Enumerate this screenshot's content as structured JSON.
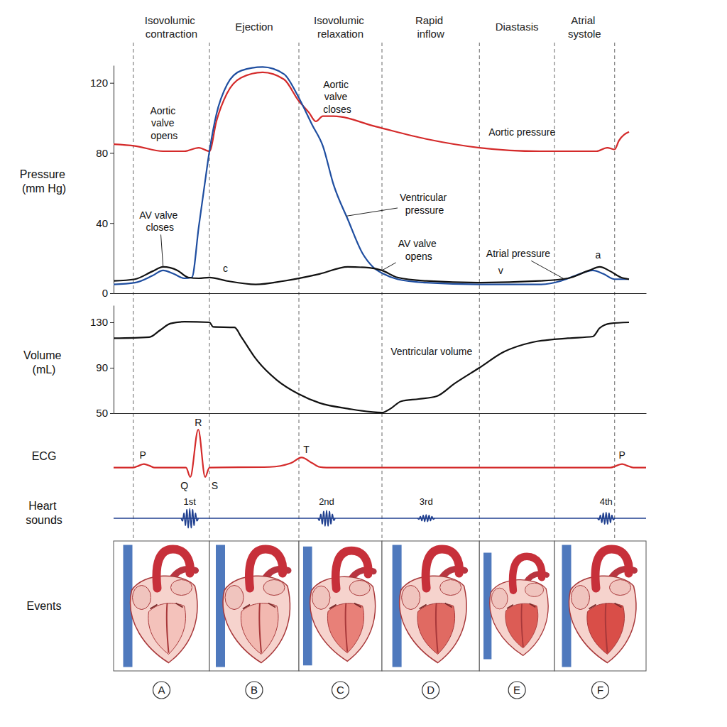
{
  "xlim": [
    0,
    100
  ],
  "boundaries": [
    3.7,
    18,
    34.8,
    50.4,
    68.7,
    82.8,
    94.1
  ],
  "phases": [
    "Isovolumic contraction",
    "Ejection",
    "Isovolumic relaxation",
    "Rapid inflow",
    "Diastasis",
    "Atrial systole"
  ],
  "chart_data": [
    {
      "type": "line",
      "y_label": "Pressure (mm Hg)",
      "ylim": [
        0,
        130
      ],
      "yticks": [
        0,
        40,
        80,
        120
      ],
      "tick_labels": "y",
      "series": [
        {
          "color": "#d42a2a",
          "x": [
            0,
            4,
            9.3,
            13.3,
            16,
            18,
            19.3,
            21.3,
            24,
            28,
            32,
            34.7,
            36.7,
            38,
            39.3,
            41.3,
            49.3,
            58.7,
            68.7,
            80,
            90.7,
            92.7,
            94.1,
            94.9,
            96.8
          ],
          "values": [
            85,
            84,
            81,
            81,
            83,
            81,
            98,
            114,
            123,
            126,
            122,
            110,
            103,
            98,
            101,
            101,
            95,
            88,
            83,
            81,
            81,
            83,
            82,
            87,
            92
          ]
        },
        {
          "color": "#1f4ea0",
          "x": [
            0,
            4,
            7.3,
            9.3,
            11.3,
            13.3,
            14.7,
            16,
            17.1,
            18,
            19.3,
            21.3,
            24,
            28,
            32,
            34.7,
            37.3,
            39.3,
            41.3,
            44,
            46.7,
            48.7,
            50.7,
            53.3,
            58.7,
            68.7,
            80,
            84,
            86.7,
            90,
            92,
            94.1,
            96.8
          ],
          "values": [
            5,
            6,
            10,
            13,
            11,
            8.5,
            9,
            38,
            62,
            81,
            102,
            119,
            127,
            129,
            125,
            112,
            96,
            84,
            62,
            42,
            23,
            15,
            11,
            8,
            6,
            5,
            5,
            7,
            10,
            13,
            11,
            8,
            8
          ]
        },
        {
          "color": "#111111",
          "x": [
            0,
            4,
            7.3,
            9.3,
            12,
            14,
            16,
            18,
            21.3,
            26.7,
            32,
            38.7,
            44,
            48,
            50.4,
            53.3,
            58.7,
            68.7,
            80,
            85.3,
            89.3,
            91.3,
            93.3,
            95.3,
            96.8
          ],
          "values": [
            7,
            8,
            12.5,
            15,
            13,
            9,
            8.5,
            9,
            7,
            5,
            7,
            11,
            15,
            14.5,
            13,
            9,
            7,
            6,
            7,
            8.5,
            13,
            15,
            12.5,
            9,
            8
          ]
        }
      ],
      "annotations": [
        {
          "text": "Aortic valve opens",
          "x": 9.5,
          "y": 97
        },
        {
          "text": "AV valve closes",
          "x": 8.7,
          "y": 41,
          "point": [
            9.3,
            15
          ]
        },
        {
          "text": "c",
          "x": 21,
          "y": 14
        },
        {
          "text": "Aortic valve closes",
          "x": 42,
          "y": 112
        },
        {
          "text": "Ventricular pressure",
          "x": 58.4,
          "y": 51,
          "point": [
            43.7,
            44
          ]
        },
        {
          "text": "AV valve opens",
          "x": 57.3,
          "y": 24.7,
          "point": [
            50.4,
            13
          ]
        },
        {
          "text": "v",
          "x": 72.7,
          "y": 13
        },
        {
          "text": "Atrial pressure",
          "x": 76,
          "y": 22.5,
          "point": [
            84.7,
            8
          ]
        },
        {
          "text": "a",
          "x": 91,
          "y": 22
        },
        {
          "text": "Aortic pressure",
          "x": 76.7,
          "y": 92
        }
      ]
    },
    {
      "type": "line",
      "y_label": "Volume (mL)",
      "ylim": [
        50,
        145
      ],
      "yticks": [
        50,
        90,
        130
      ],
      "tick_labels": "y",
      "series": [
        {
          "color": "#111111",
          "x": [
            0,
            6.7,
            8.7,
            10.7,
            13.3,
            18,
            18.7,
            22.7,
            24,
            26.7,
            30.7,
            34.7,
            38.7,
            44,
            50.4,
            52,
            54,
            57.3,
            60.7,
            64,
            68.7,
            73.3,
            78.7,
            85.3,
            90,
            91.3,
            93.3,
            96.8
          ],
          "values": [
            116,
            117,
            123,
            129,
            130.5,
            130,
            126,
            125.5,
            117,
            98,
            79,
            67,
            59,
            54,
            50.5,
            54,
            60.5,
            62.5,
            65,
            76,
            90,
            104,
            112.5,
            116,
            117.5,
            125,
            129,
            130
          ]
        }
      ],
      "annotations": [
        {
          "text": "Ventricular volume",
          "x": 59.7,
          "y": 104.4
        }
      ]
    },
    {
      "type": "line",
      "y_label": "ECG",
      "tick_labels": false,
      "series": [
        {
          "color": "#d42a2a",
          "x": [
            0,
            3.7,
            4.7,
            5.7,
            6.8,
            7.7,
            13.6,
            14.4,
            15.9,
            17.2,
            18,
            29.3,
            33.3,
            35.3,
            37.3,
            38.7,
            40,
            93.3,
            94.4,
            95.5,
            96.5,
            97.6,
            100
          ],
          "values": [
            0,
            0,
            0.06,
            0.12,
            0.06,
            0,
            0,
            -0.32,
            1.28,
            -0.32,
            0,
            0.02,
            0.15,
            0.34,
            0.15,
            0.02,
            0,
            0,
            0.06,
            0.12,
            0.06,
            0,
            0
          ]
        }
      ],
      "annotations": [
        {
          "text": "P",
          "x": 5.5,
          "y": 0.42
        },
        {
          "text": "Q",
          "x": 13.3,
          "y": -0.62
        },
        {
          "text": "R",
          "x": 15.9,
          "y": 1.52
        },
        {
          "text": "S",
          "x": 19,
          "y": -0.62
        },
        {
          "text": "T",
          "x": 36.2,
          "y": 0.6
        },
        {
          "text": "P",
          "x": 95.5,
          "y": 0.42
        }
      ]
    },
    {
      "type": "phonocardiogram",
      "y_label": "Heart sounds",
      "tick_labels": false,
      "color": "#1f3f8f",
      "categories": [
        "1st",
        "2nd",
        "3rd",
        "4th"
      ],
      "x": [
        14.3,
        40,
        58.7,
        92.5
      ],
      "values": [
        1,
        0.8,
        0.35,
        0.6
      ]
    }
  ],
  "events": {
    "label": "Events",
    "letters": [
      "A",
      "B",
      "C",
      "D",
      "E",
      "F"
    ]
  }
}
